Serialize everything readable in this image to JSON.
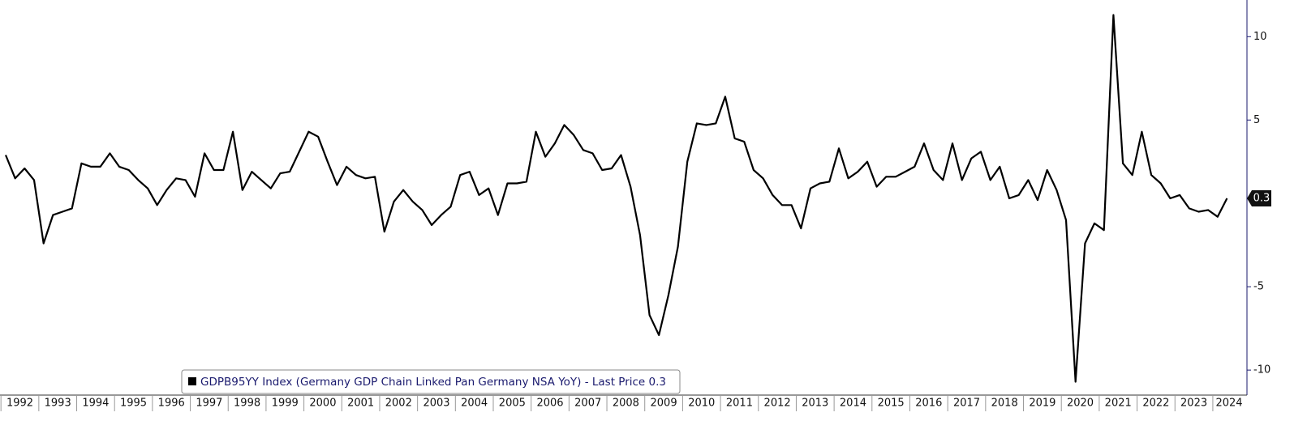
{
  "chart_data": {
    "type": "line",
    "categories": [
      "1992",
      null,
      null,
      null,
      "1993",
      null,
      null,
      null,
      "1994",
      null,
      null,
      null,
      "1995",
      null,
      null,
      null,
      "1996",
      null,
      null,
      null,
      "1997",
      null,
      null,
      null,
      "1998",
      null,
      null,
      null,
      "1999",
      null,
      null,
      null,
      "2000",
      null,
      null,
      null,
      "2001",
      null,
      null,
      null,
      "2002",
      null,
      null,
      null,
      "2003",
      null,
      null,
      null,
      "2004",
      null,
      null,
      null,
      "2005",
      null,
      null,
      null,
      "2006",
      null,
      null,
      null,
      "2007",
      null,
      null,
      null,
      "2008",
      null,
      null,
      null,
      "2009",
      null,
      null,
      null,
      "2010",
      null,
      null,
      null,
      "2011",
      null,
      null,
      null,
      "2012",
      null,
      null,
      null,
      "2013",
      null,
      null,
      null,
      "2014",
      null,
      null,
      null,
      "2015",
      null,
      null,
      null,
      "2016",
      null,
      null,
      null,
      "2017",
      null,
      null,
      null,
      "2018",
      null,
      null,
      null,
      "2019",
      null,
      null,
      null,
      "2020",
      null,
      null,
      null,
      "2021",
      null,
      null,
      null,
      "2022",
      null,
      null,
      null,
      "2023",
      null,
      null,
      null,
      "2024",
      null
    ],
    "series": [
      {
        "name": "GDPB95YY Index (Germany GDP Chain Linked Pan Germany NSA YoY) - Last Price 0.3",
        "color": "#000000",
        "values": [
          2.9,
          1.5,
          2.1,
          1.4,
          -2.4,
          -0.7,
          -0.5,
          -0.3,
          2.4,
          2.2,
          2.2,
          3.0,
          2.2,
          2.0,
          1.4,
          0.9,
          -0.1,
          0.8,
          1.5,
          1.4,
          0.4,
          3.0,
          2.0,
          2.0,
          4.3,
          0.8,
          1.9,
          1.4,
          0.9,
          1.8,
          1.9,
          3.1,
          4.3,
          4.0,
          2.5,
          1.1,
          2.2,
          1.7,
          1.5,
          1.6,
          -1.7,
          0.1,
          0.8,
          0.1,
          -0.4,
          -1.3,
          -0.7,
          -0.2,
          1.7,
          1.9,
          0.5,
          0.9,
          -0.7,
          1.2,
          1.2,
          1.3,
          4.3,
          2.8,
          3.6,
          4.7,
          4.1,
          3.2,
          3.0,
          2.0,
          2.1,
          2.9,
          1.0,
          -1.9,
          -6.7,
          -7.9,
          -5.5,
          -2.6,
          2.5,
          4.8,
          4.7,
          4.8,
          6.4,
          3.9,
          3.7,
          2.0,
          1.5,
          0.5,
          -0.1,
          -0.1,
          -1.5,
          0.9,
          1.2,
          1.3,
          3.3,
          1.5,
          1.9,
          2.5,
          1.0,
          1.6,
          1.6,
          1.9,
          2.2,
          3.6,
          2.0,
          1.4,
          3.6,
          1.4,
          2.7,
          3.1,
          1.4,
          2.2,
          0.3,
          0.5,
          1.4,
          0.2,
          2.0,
          0.8,
          -1.0,
          -10.7,
          -2.4,
          -1.2,
          -1.6,
          11.3,
          2.4,
          1.7,
          4.3,
          1.7,
          1.2,
          0.3,
          0.5,
          -0.3,
          -0.5,
          -0.4,
          -0.8,
          0.3
        ]
      }
    ],
    "ylim": [
      -11.5,
      12.2
    ],
    "yticks": [
      -10,
      -5,
      5,
      10
    ],
    "grid": false
  }
}
